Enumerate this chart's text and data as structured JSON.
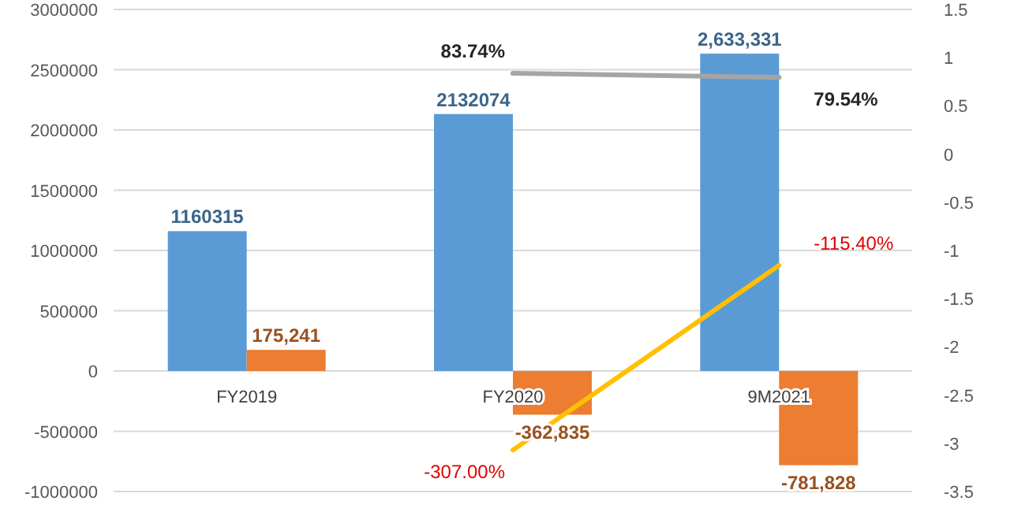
{
  "chart_data": {
    "type": "bar",
    "categories": [
      "FY2019",
      "FY2020",
      "9M2021"
    ],
    "series": [
      {
        "color": "#5b9bd5",
        "values": [
          1160315,
          2132074,
          2633331
        ],
        "value_labels": [
          "1160315",
          "2132074",
          "2,633,331"
        ]
      },
      {
        "color": "#ed7d31",
        "values": [
          175241,
          -362835,
          -781828
        ],
        "value_labels": [
          "175,241",
          "-362,835",
          "-781,828"
        ]
      },
      {
        "type": "line",
        "axis": "y2",
        "color": "#a5a5a5",
        "values": [
          null,
          0.8374,
          0.7954
        ],
        "value_labels": [
          null,
          "83.74%",
          "79.54%"
        ]
      },
      {
        "type": "line",
        "axis": "y2",
        "color": "#ffc000",
        "values": [
          null,
          -3.07,
          -1.154
        ],
        "value_labels": [
          null,
          "-307.00%",
          "-115.40%"
        ]
      }
    ],
    "ylim": [
      -1000000,
      3000000
    ],
    "yticks": [
      -1000000,
      -500000,
      0,
      500000,
      1000000,
      1500000,
      2000000,
      2500000,
      3000000
    ],
    "y2lim": [
      -3.5,
      1.5
    ],
    "y2ticks": [
      -3.5,
      -3,
      -2.5,
      -2,
      -1.5,
      -1,
      -0.5,
      0,
      0.5,
      1,
      1.5
    ],
    "grid": "y",
    "marker": "none",
    "line_style": "solid"
  }
}
